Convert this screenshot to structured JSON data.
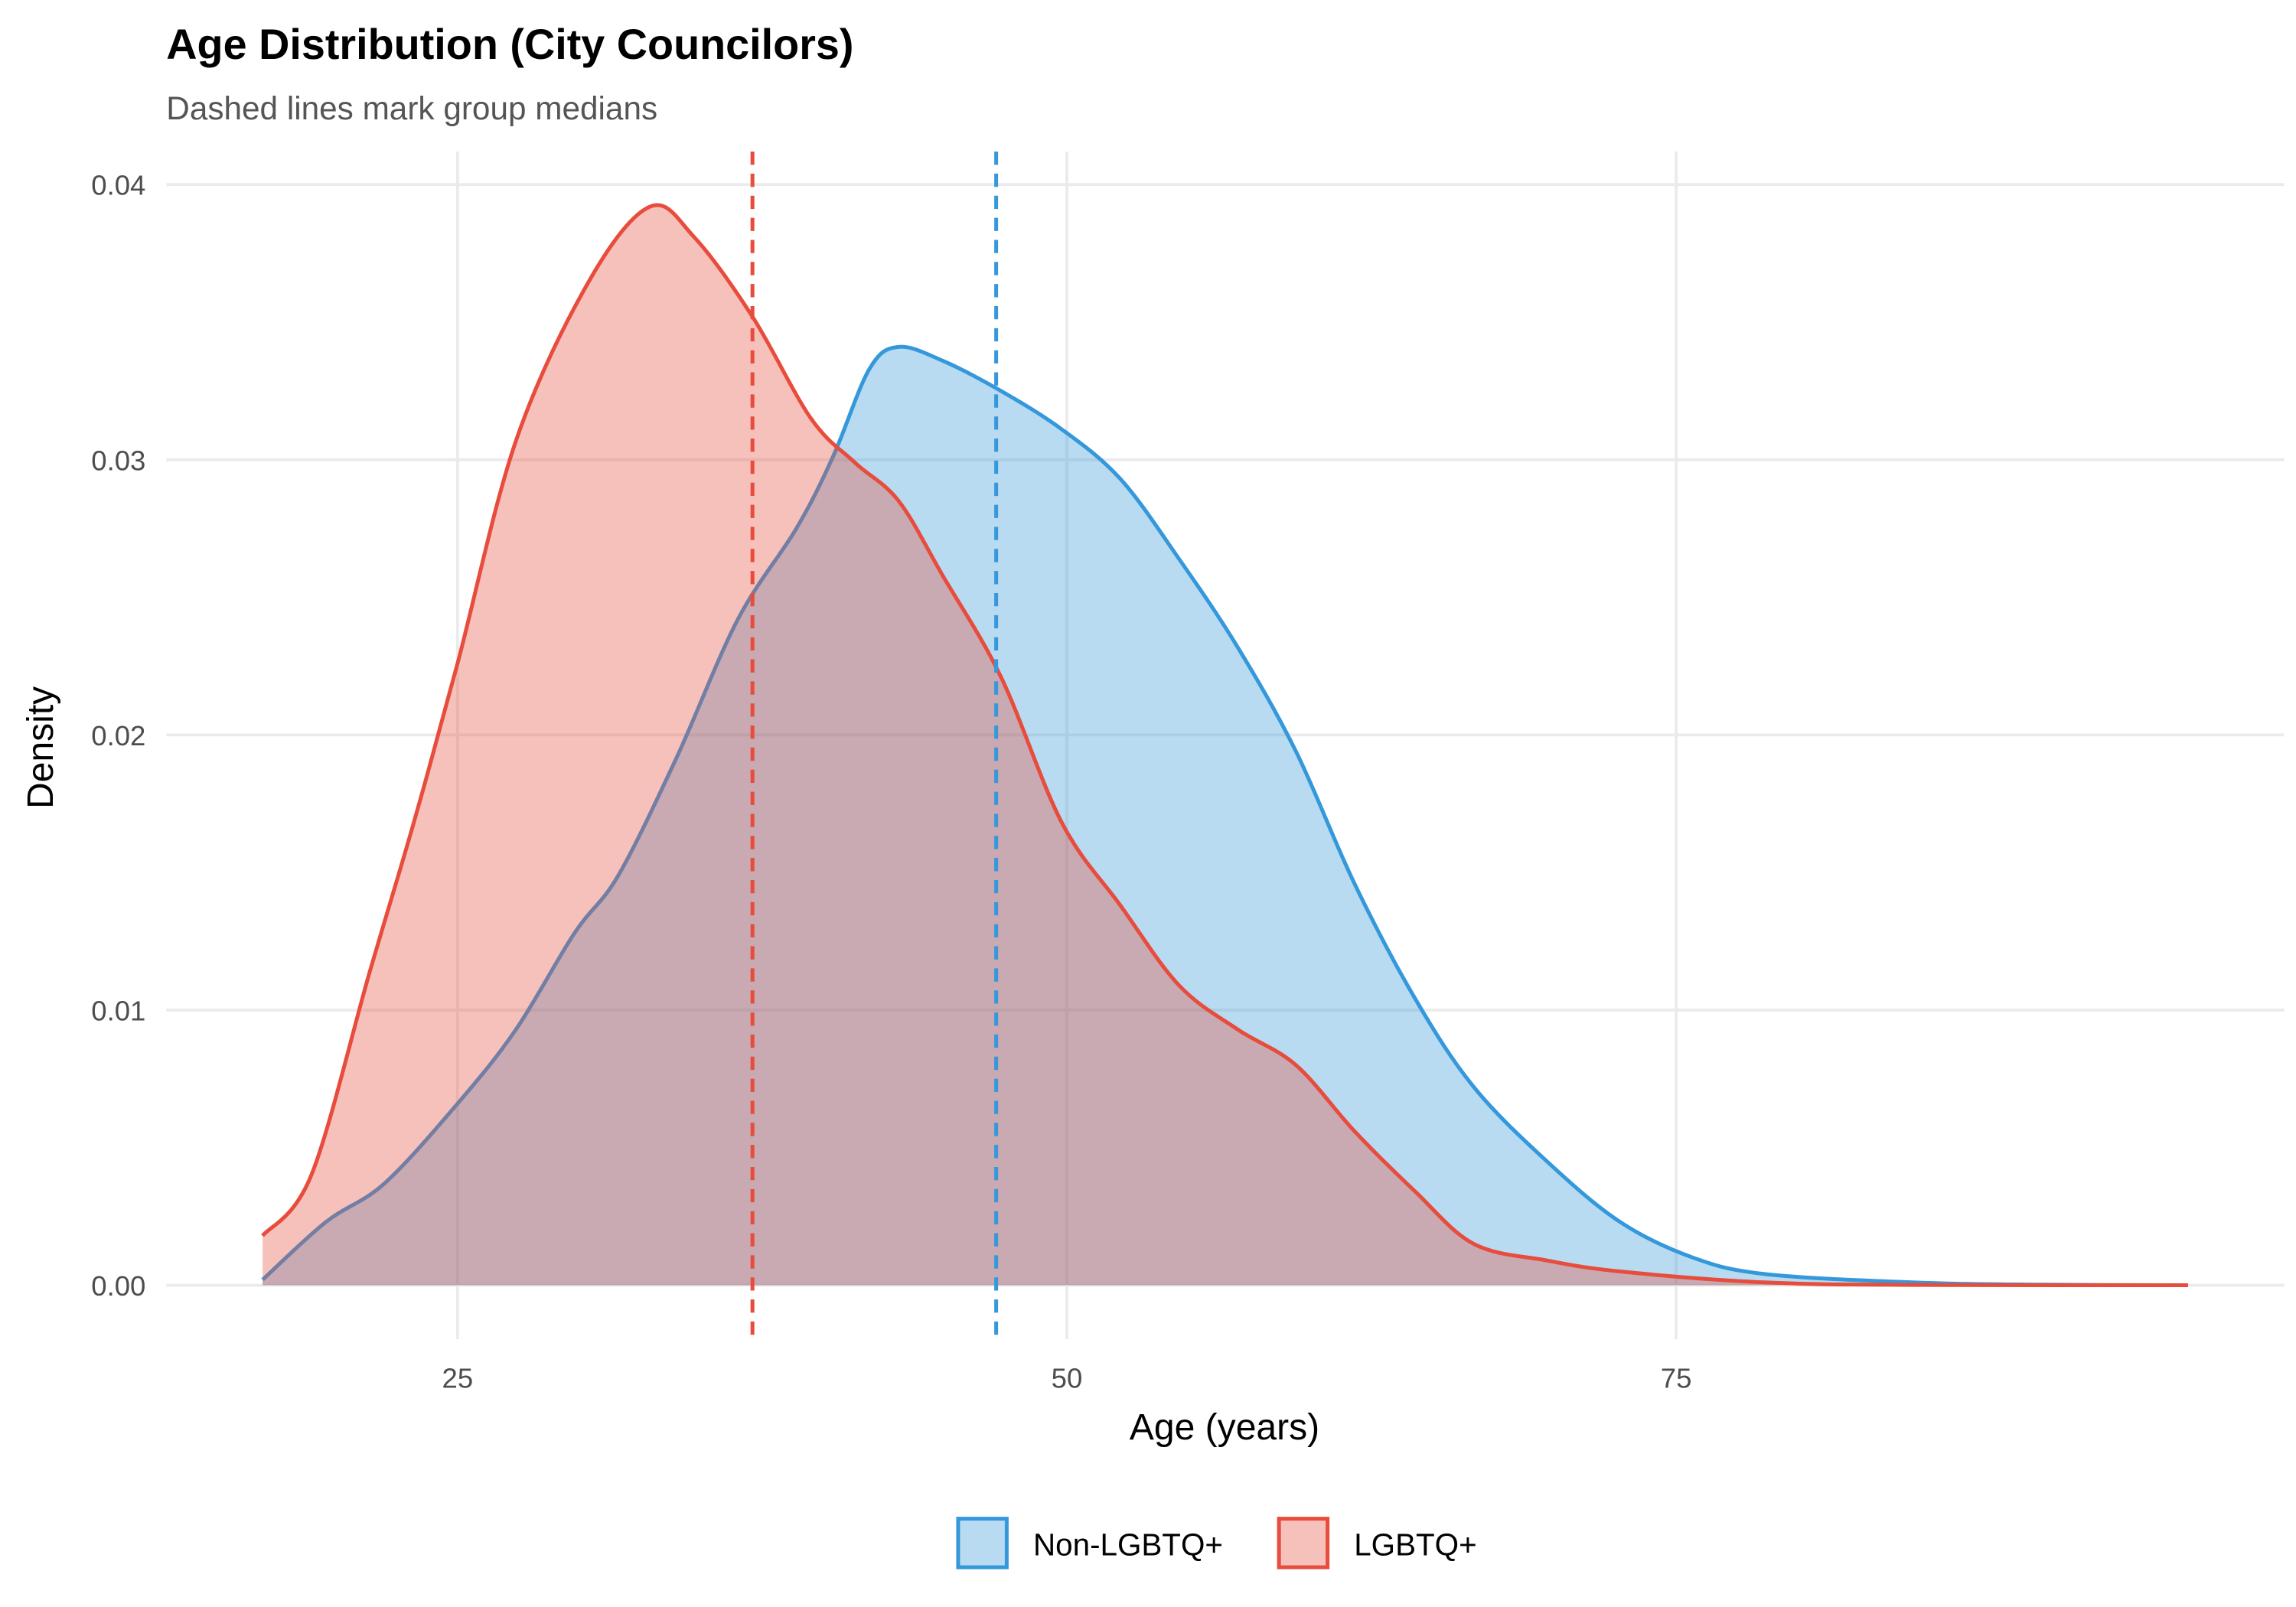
{
  "chart_data": {
    "type": "area",
    "title": "Age Distribution (City Councilors)",
    "subtitle": "Dashed lines mark group medians",
    "xlabel": "Age (years)",
    "ylabel": "Density",
    "xlim": [
      13.05,
      99.95
    ],
    "ylim": [
      -0.00196,
      0.0412
    ],
    "x_ticks": [
      25,
      50,
      75
    ],
    "x_tick_labels": [
      "25",
      "50",
      "75"
    ],
    "y_ticks": [
      0,
      0.01,
      0.02,
      0.03,
      0.04
    ],
    "y_tick_labels": [
      "0.00",
      "0.01",
      "0.02",
      "0.03",
      "0.04"
    ],
    "grid": true,
    "legend_position": "bottom",
    "series": [
      {
        "name": "Non-LGBTQ+",
        "color": "#3498DB",
        "median": 47.1,
        "x": [
          17.0,
          19.6,
          22.0,
          25.0,
          27.4,
          29.8,
          31.6,
          34.0,
          36.5,
          38.9,
          40.4,
          41.9,
          43.1,
          44.9,
          47.3,
          49.8,
          52.2,
          54.6,
          57.0,
          59.4,
          61.8,
          64.3,
          66.7,
          69.7,
          72.7,
          75.7,
          78.7,
          84.8,
          90.0,
          96.0
        ],
        "y": [
          0.0002,
          0.0023,
          0.0037,
          0.0066,
          0.0093,
          0.0128,
          0.0149,
          0.0192,
          0.0242,
          0.0275,
          0.0301,
          0.0333,
          0.0341,
          0.0336,
          0.0325,
          0.0311,
          0.0293,
          0.0264,
          0.0232,
          0.0194,
          0.0146,
          0.0104,
          0.0072,
          0.0045,
          0.0023,
          0.001,
          0.0004,
          0.0001,
          2e-05,
          0.0
        ]
      },
      {
        "name": "LGBTQ+",
        "color": "#E74C3C",
        "median": 37.1,
        "x": [
          17.0,
          19.0,
          21.4,
          23.2,
          25.0,
          27.4,
          30.4,
          32.9,
          34.7,
          37.1,
          39.5,
          41.3,
          43.1,
          44.9,
          47.3,
          49.8,
          52.2,
          54.6,
          57.0,
          59.4,
          61.8,
          64.3,
          66.7,
          69.7,
          72.7,
          78.7,
          85.0,
          96.0
        ],
        "y": [
          0.0018,
          0.004,
          0.0114,
          0.0168,
          0.0226,
          0.0307,
          0.0365,
          0.0392,
          0.0381,
          0.0352,
          0.0315,
          0.0299,
          0.0285,
          0.0258,
          0.0221,
          0.0168,
          0.0138,
          0.0109,
          0.0093,
          0.008,
          0.0056,
          0.0034,
          0.0015,
          0.0009,
          0.0005,
          0.0001,
          1e-05,
          0.0
        ]
      }
    ]
  }
}
